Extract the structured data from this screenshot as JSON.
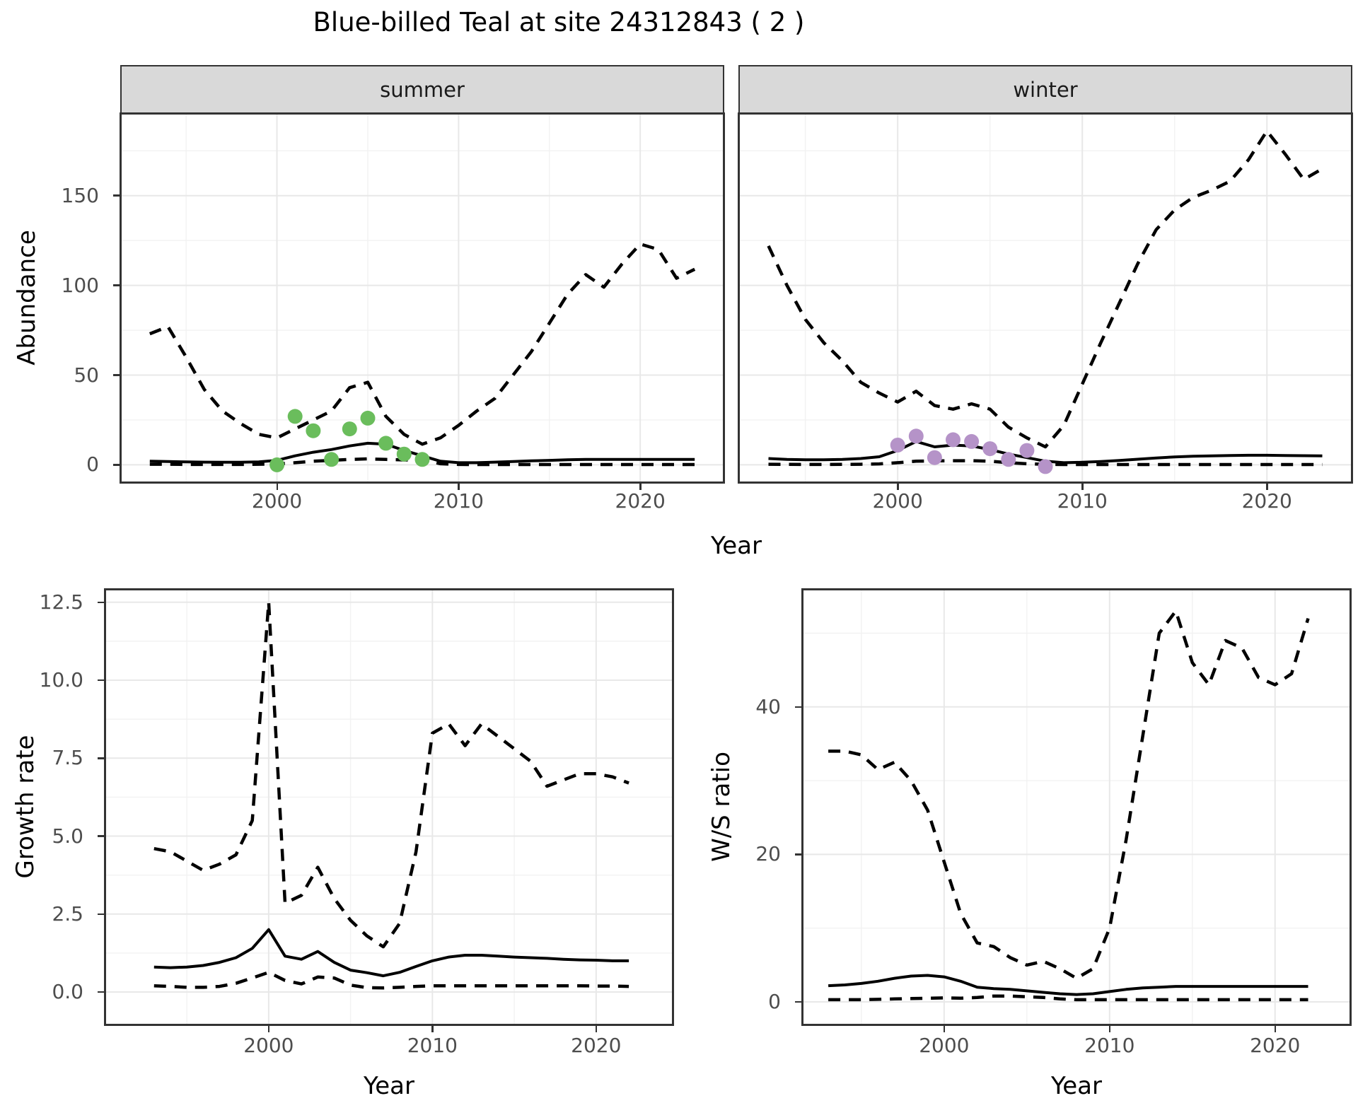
{
  "title": "Blue-billed Teal at site 24312843 ( 2 )",
  "axes": {
    "abundance": "Abundance",
    "growth": "Growth rate",
    "ws": "W/S ratio",
    "year": "Year"
  },
  "colors": {
    "summer_obs": "#6abd5c",
    "winter_obs": "#b593c8",
    "line": "#000000",
    "strip_bg": "#d9d9d9",
    "grid_major": "#e8e8e8",
    "grid_minor": "#f2f2f2",
    "tick_text": "#4d4d4d",
    "border": "#333333"
  },
  "chart_data": [
    {
      "id": "abundance_summer",
      "type": "line",
      "facet": "summer",
      "xlabel": "Year",
      "ylabel": "Abundance",
      "xlim": [
        1991.45,
        2024.55
      ],
      "ylim": [
        -9.3,
        195.2
      ],
      "xtick_values": [
        2000,
        2010,
        2020
      ],
      "xticks": [
        "2000",
        "2010",
        "2020"
      ],
      "ytick_values": [
        0,
        50,
        100,
        150
      ],
      "yticks": [
        "0",
        "50",
        "100",
        "150"
      ],
      "xminor": [
        1995,
        2005,
        2015
      ],
      "yminor": [
        25,
        75,
        125,
        175
      ],
      "grid": true,
      "legend": "none",
      "x": [
        1993,
        1994,
        1995,
        1996,
        1997,
        1998,
        1999,
        2000,
        2001,
        2002,
        2003,
        2004,
        2005,
        2006,
        2007,
        2008,
        2009,
        2010,
        2011,
        2012,
        2013,
        2014,
        2015,
        2016,
        2017,
        2018,
        2019,
        2020,
        2021,
        2022,
        2023
      ],
      "series": [
        {
          "name": "upper_95_ci",
          "style": "dashed",
          "values": [
            73,
            77,
            60,
            42,
            30,
            23,
            17,
            15,
            20,
            25,
            30,
            43,
            46,
            27,
            17,
            11.5,
            15,
            22,
            30,
            37,
            50,
            63,
            79,
            95,
            106,
            99,
            112,
            123,
            120,
            104,
            109
          ]
        },
        {
          "name": "model_median",
          "style": "solid",
          "values": [
            2,
            1.8,
            1.6,
            1.5,
            1.4,
            1.4,
            1.6,
            2.5,
            5,
            7,
            8.5,
            10.5,
            12,
            11.5,
            8,
            5,
            2,
            1.2,
            1.2,
            1.5,
            1.8,
            2.2,
            2.5,
            2.8,
            3,
            3,
            3,
            3,
            3,
            3,
            3
          ]
        },
        {
          "name": "lower_05_ci",
          "style": "dashed",
          "values": [
            0.3,
            0.3,
            0.2,
            0.2,
            0.2,
            0.2,
            0.3,
            0.5,
            1.2,
            2,
            2.5,
            3,
            3.3,
            3,
            2.7,
            2.7,
            0.6,
            0.2,
            0.15,
            0.15,
            0.15,
            0.15,
            0.15,
            0.15,
            0.15,
            0.15,
            0.15,
            0.15,
            0.15,
            0.15,
            0.15
          ]
        }
      ],
      "points": {
        "name": "observed_counts_summer",
        "color_key": "summer_obs",
        "years": [
          2000,
          2001,
          2002,
          2003,
          2004,
          2005,
          2006,
          2007,
          2008
        ],
        "values": [
          0,
          27,
          19,
          3,
          20,
          26,
          12,
          6,
          3
        ]
      }
    },
    {
      "id": "abundance_winter",
      "type": "line",
      "facet": "winter",
      "xlabel": "Year",
      "ylabel": "Abundance",
      "xlim": [
        1991.45,
        2024.55
      ],
      "ylim": [
        -9.3,
        195.2
      ],
      "xtick_values": [
        2000,
        2010,
        2020
      ],
      "xticks": [
        "2000",
        "2010",
        "2020"
      ],
      "ytick_values": [
        0,
        50,
        100,
        150
      ],
      "yticks": [
        "0",
        "50",
        "100",
        "150"
      ],
      "xminor": [
        1995,
        2005,
        2015
      ],
      "yminor": [
        25,
        75,
        125,
        175
      ],
      "grid": true,
      "legend": "none",
      "x": [
        1993,
        1994,
        1995,
        1996,
        1997,
        1998,
        1999,
        2000,
        2001,
        2002,
        2003,
        2004,
        2005,
        2006,
        2007,
        2008,
        2009,
        2010,
        2011,
        2012,
        2013,
        2014,
        2015,
        2016,
        2017,
        2018,
        2019,
        2020,
        2021,
        2022,
        2023
      ],
      "series": [
        {
          "name": "upper_95_ci",
          "style": "dashed",
          "values": [
            122,
            100,
            81,
            68,
            58,
            46,
            40,
            35,
            41,
            33,
            31,
            34,
            31,
            21,
            15,
            10,
            22,
            45,
            68,
            90,
            112,
            131,
            142,
            149,
            153,
            158,
            170,
            186,
            173,
            159,
            165
          ]
        },
        {
          "name": "model_median",
          "style": "solid",
          "values": [
            3.5,
            3,
            2.8,
            2.8,
            3,
            3.5,
            4.5,
            8,
            13,
            10,
            11,
            10.5,
            8.5,
            6,
            4,
            2,
            1.2,
            1.4,
            1.8,
            2.4,
            3.1,
            3.8,
            4.4,
            4.8,
            5,
            5.2,
            5.3,
            5.3,
            5.2,
            5.1,
            5
          ]
        },
        {
          "name": "lower_05_ci",
          "style": "dashed",
          "values": [
            0.3,
            0.25,
            0.2,
            0.2,
            0.25,
            0.3,
            0.5,
            1.2,
            2,
            2.2,
            2.3,
            2.3,
            2,
            1.2,
            0.6,
            0.25,
            0.15,
            0.15,
            0.15,
            0.15,
            0.15,
            0.15,
            0.15,
            0.15,
            0.15,
            0.15,
            0.15,
            0.15,
            0.15,
            0.15,
            0.15
          ]
        }
      ],
      "points": {
        "name": "observed_counts_winter",
        "color_key": "winter_obs",
        "years": [
          2000,
          2001,
          2002,
          2003,
          2004,
          2005,
          2006,
          2007,
          2008
        ],
        "values": [
          11,
          16,
          4,
          14,
          13,
          9,
          3,
          8,
          -1
        ]
      }
    },
    {
      "id": "growth_rate",
      "type": "line",
      "facet": "",
      "xlabel": "Year",
      "ylabel": "Growth rate",
      "xlim": [
        1990.07,
        2024.63
      ],
      "ylim": [
        -1.02,
        12.88
      ],
      "xtick_values": [
        2000,
        2010,
        2020
      ],
      "xticks": [
        "2000",
        "2010",
        "2020"
      ],
      "ytick_values": [
        0,
        2.5,
        5,
        7.5,
        10,
        12.5
      ],
      "yticks": [
        "0.0",
        "2.5",
        "5.0",
        "7.5",
        "10.0",
        "12.5"
      ],
      "xminor": [
        1995,
        2005,
        2015
      ],
      "yminor": [
        1.25,
        3.75,
        6.25,
        8.75,
        11.25
      ],
      "grid": true,
      "legend": "none",
      "x": [
        1993,
        1994,
        1995,
        1996,
        1997,
        1998,
        1999,
        2000,
        2001,
        2002,
        2003,
        2004,
        2005,
        2006,
        2007,
        2008,
        2009,
        2010,
        2011,
        2012,
        2013,
        2014,
        2015,
        2016,
        2017,
        2018,
        2019,
        2020,
        2021,
        2022
      ],
      "series": [
        {
          "name": "upper_95_ci",
          "style": "dashed",
          "values": [
            4.6,
            4.5,
            4.2,
            3.9,
            4.1,
            4.4,
            5.5,
            12.5,
            2.85,
            3.1,
            4.0,
            3.0,
            2.3,
            1.8,
            1.45,
            2.2,
            4.5,
            8.3,
            8.6,
            7.9,
            8.6,
            8.2,
            7.8,
            7.4,
            6.6,
            6.8,
            7.0,
            7.0,
            6.9,
            6.7
          ]
        },
        {
          "name": "model_median",
          "style": "solid",
          "values": [
            0.8,
            0.78,
            0.8,
            0.85,
            0.95,
            1.1,
            1.4,
            2.0,
            1.15,
            1.05,
            1.3,
            0.95,
            0.7,
            0.62,
            0.52,
            0.63,
            0.82,
            1.0,
            1.12,
            1.18,
            1.18,
            1.15,
            1.12,
            1.1,
            1.08,
            1.05,
            1.03,
            1.02,
            1.0,
            1.0
          ]
        },
        {
          "name": "lower_05_ci",
          "style": "dashed",
          "values": [
            0.2,
            0.18,
            0.15,
            0.15,
            0.18,
            0.28,
            0.45,
            0.63,
            0.37,
            0.26,
            0.48,
            0.45,
            0.22,
            0.14,
            0.13,
            0.15,
            0.18,
            0.2,
            0.2,
            0.2,
            0.2,
            0.2,
            0.2,
            0.2,
            0.2,
            0.2,
            0.2,
            0.19,
            0.19,
            0.18
          ]
        }
      ],
      "points": null
    },
    {
      "id": "ws_ratio",
      "type": "line",
      "facet": "",
      "xlabel": "Year",
      "ylabel": "W/S ratio",
      "xlim": [
        1991.5,
        2024.5
      ],
      "ylim": [
        -2.97,
        55.8
      ],
      "xtick_values": [
        2000,
        2010,
        2020
      ],
      "xticks": [
        "2000",
        "2010",
        "2020"
      ],
      "ytick_values": [
        0,
        20,
        40
      ],
      "yticks": [
        "0",
        "20",
        "40"
      ],
      "xminor": [
        1995,
        2005,
        2015
      ],
      "yminor": [
        10,
        30,
        50
      ],
      "grid": true,
      "legend": "none",
      "x": [
        1993,
        1994,
        1995,
        1996,
        1997,
        1998,
        1999,
        2000,
        2001,
        2002,
        2003,
        2004,
        2005,
        2006,
        2007,
        2008,
        2009,
        2010,
        2011,
        2012,
        2013,
        2014,
        2015,
        2016,
        2017,
        2018,
        2019,
        2020,
        2021,
        2022
      ],
      "series": [
        {
          "name": "upper_95_ci",
          "style": "dashed",
          "values": [
            34,
            34,
            33.5,
            31.5,
            32.5,
            30,
            26,
            19,
            12,
            8,
            7.5,
            6,
            5,
            5.5,
            4.5,
            3.2,
            4.5,
            10,
            22,
            36,
            50,
            53,
            46,
            43,
            49,
            48,
            44,
            43,
            44.5,
            52
          ]
        },
        {
          "name": "model_median",
          "style": "solid",
          "values": [
            2.2,
            2.3,
            2.5,
            2.8,
            3.2,
            3.5,
            3.6,
            3.4,
            2.8,
            2.0,
            1.8,
            1.7,
            1.5,
            1.3,
            1.1,
            1.0,
            1.1,
            1.4,
            1.7,
            1.9,
            2.0,
            2.1,
            2.1,
            2.1,
            2.1,
            2.1,
            2.1,
            2.1,
            2.1,
            2.1
          ]
        },
        {
          "name": "lower_05_ci",
          "style": "dashed",
          "values": [
            0.3,
            0.3,
            0.3,
            0.35,
            0.4,
            0.45,
            0.5,
            0.55,
            0.5,
            0.6,
            0.8,
            0.8,
            0.7,
            0.6,
            0.4,
            0.3,
            0.3,
            0.3,
            0.3,
            0.3,
            0.3,
            0.3,
            0.3,
            0.3,
            0.3,
            0.3,
            0.3,
            0.3,
            0.3,
            0.3
          ]
        }
      ],
      "points": null
    }
  ]
}
